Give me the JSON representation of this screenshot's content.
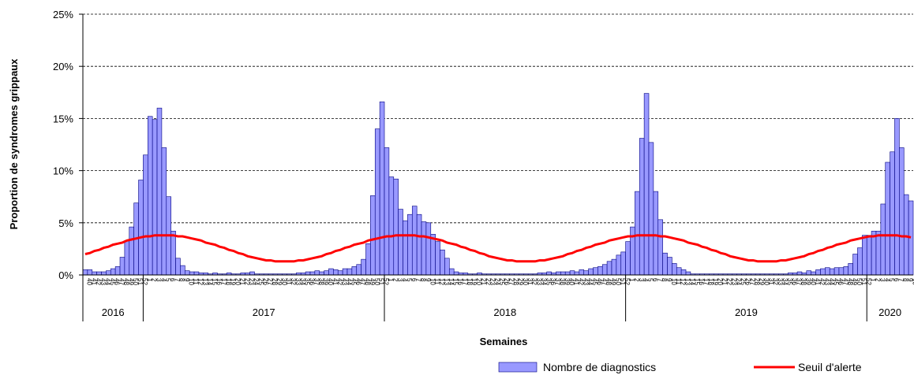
{
  "chart_data": {
    "type": "bar",
    "x_label": "Semaines",
    "y_label": "Proportion de syndromes grippaux",
    "ylim": [
      0,
      25
    ],
    "yticks": [
      {
        "value": 0,
        "label": "0%"
      },
      {
        "value": 5,
        "label": "5%"
      },
      {
        "value": 10,
        "label": "10%"
      },
      {
        "value": 15,
        "label": "15%"
      },
      {
        "value": 20,
        "label": "20%"
      },
      {
        "value": 25,
        "label": "25%"
      }
    ],
    "grid": true,
    "legend": "bottom-right",
    "categories": [
      "40",
      "41",
      "42",
      "43",
      "44",
      "45",
      "46",
      "47",
      "48",
      "49",
      "50",
      "51",
      "52",
      "1",
      "2",
      "3",
      "4",
      "5",
      "6",
      "7",
      "8",
      "9",
      "10",
      "11",
      "12",
      "13",
      "14",
      "15",
      "16",
      "17",
      "18",
      "19",
      "20",
      "21",
      "22",
      "23",
      "24",
      "25",
      "26",
      "27",
      "28",
      "29",
      "30",
      "31",
      "32",
      "33",
      "34",
      "35",
      "36",
      "37",
      "38",
      "39",
      "40",
      "41",
      "42",
      "43",
      "44",
      "45",
      "46",
      "47",
      "48",
      "49",
      "50",
      "51",
      "52",
      "1",
      "2",
      "3",
      "4",
      "5",
      "6",
      "7",
      "8",
      "9",
      "10",
      "11",
      "12",
      "13",
      "14",
      "15",
      "16",
      "17",
      "18",
      "19",
      "20",
      "21",
      "22",
      "23",
      "24",
      "25",
      "26",
      "27",
      "28",
      "29",
      "30",
      "31",
      "32",
      "33",
      "34",
      "35",
      "36",
      "37",
      "38",
      "39",
      "40",
      "41",
      "42",
      "43",
      "44",
      "45",
      "46",
      "47",
      "48",
      "49",
      "50",
      "51",
      "52",
      "1",
      "2",
      "3",
      "4",
      "5",
      "6",
      "7",
      "8",
      "9",
      "10",
      "11",
      "12",
      "13",
      "14",
      "15",
      "16",
      "17",
      "18",
      "19",
      "20",
      "21",
      "22",
      "23",
      "24",
      "25",
      "26",
      "27",
      "28",
      "29",
      "30",
      "31",
      "32",
      "33",
      "34",
      "35",
      "36",
      "37",
      "38",
      "39",
      "40",
      "41",
      "42",
      "43",
      "44",
      "45",
      "46",
      "47",
      "48",
      "49",
      "50",
      "51",
      "52",
      "1",
      "2",
      "3",
      "4",
      "5",
      "6",
      "7",
      "8",
      "9",
      "10"
    ],
    "year_groups": [
      {
        "label": "2016",
        "count": 13
      },
      {
        "label": "2017",
        "count": 52
      },
      {
        "label": "2018",
        "count": 52
      },
      {
        "label": "2019",
        "count": 52
      },
      {
        "label": "2020",
        "count": 10
      }
    ],
    "series": [
      {
        "name": "Nombre de diagnostics",
        "type": "bar",
        "color": "#9999ff",
        "values": [
          0.5,
          0.5,
          0.3,
          0.3,
          0.3,
          0.4,
          0.6,
          0.8,
          1.7,
          3.3,
          4.6,
          6.9,
          9.1,
          11.5,
          15.2,
          14.9,
          16.0,
          12.2,
          7.5,
          4.2,
          1.6,
          0.9,
          0.4,
          0.3,
          0.3,
          0.2,
          0.2,
          0.1,
          0.2,
          0.1,
          0.1,
          0.2,
          0.1,
          0.1,
          0.2,
          0.2,
          0.3,
          0.1,
          0.1,
          0.1,
          0.1,
          0.1,
          0.1,
          0.1,
          0.1,
          0.1,
          0.2,
          0.2,
          0.3,
          0.3,
          0.4,
          0.3,
          0.4,
          0.6,
          0.5,
          0.4,
          0.6,
          0.6,
          0.8,
          1.0,
          1.5,
          3.0,
          7.6,
          14.0,
          16.6,
          12.2,
          9.4,
          9.2,
          6.3,
          5.2,
          5.8,
          6.6,
          5.8,
          5.1,
          5.0,
          3.9,
          3.2,
          2.4,
          1.6,
          0.6,
          0.3,
          0.2,
          0.2,
          0.1,
          0.1,
          0.2,
          0.1,
          0.1,
          0.1,
          0.1,
          0.1,
          0.1,
          0.1,
          0.1,
          0.1,
          0.1,
          0.1,
          0.1,
          0.2,
          0.2,
          0.3,
          0.2,
          0.3,
          0.3,
          0.3,
          0.4,
          0.3,
          0.5,
          0.4,
          0.6,
          0.7,
          0.8,
          1.0,
          1.3,
          1.5,
          1.9,
          2.2,
          3.2,
          4.6,
          8.0,
          13.1,
          17.4,
          12.7,
          8.0,
          5.3,
          2.1,
          1.7,
          1.1,
          0.7,
          0.5,
          0.3,
          0.1,
          0.1,
          0.1,
          0.1,
          0.1,
          0.1,
          0.1,
          0.1,
          0.1,
          0.1,
          0.1,
          0.1,
          0.1,
          0.1,
          0.1,
          0.1,
          0.1,
          0.1,
          0.1,
          0.1,
          0.1,
          0.2,
          0.2,
          0.3,
          0.2,
          0.4,
          0.3,
          0.5,
          0.6,
          0.7,
          0.6,
          0.7,
          0.7,
          0.8,
          1.1,
          2.0,
          2.6,
          3.8,
          3.8,
          4.2,
          4.2,
          6.8,
          10.8,
          11.8,
          15.0,
          12.2,
          7.7,
          7.1
        ]
      },
      {
        "name": "Seuil d'alerte",
        "type": "line",
        "color": "#ff0000",
        "values": [
          2.0,
          2.1,
          2.3,
          2.4,
          2.6,
          2.7,
          2.9,
          3.0,
          3.1,
          3.3,
          3.4,
          3.5,
          3.6,
          3.7,
          3.7,
          3.8,
          3.8,
          3.8,
          3.8,
          3.8,
          3.7,
          3.7,
          3.6,
          3.5,
          3.4,
          3.3,
          3.1,
          3.0,
          2.9,
          2.7,
          2.6,
          2.4,
          2.3,
          2.1,
          2.0,
          1.8,
          1.7,
          1.6,
          1.5,
          1.4,
          1.4,
          1.3,
          1.3,
          1.3,
          1.3,
          1.3,
          1.4,
          1.4,
          1.5,
          1.6,
          1.7,
          1.8,
          2.0,
          2.1,
          2.3,
          2.4,
          2.6,
          2.7,
          2.9,
          3.0,
          3.1,
          3.3,
          3.4,
          3.5,
          3.6,
          3.7,
          3.7,
          3.8,
          3.8,
          3.8,
          3.8,
          3.8,
          3.7,
          3.7,
          3.6,
          3.5,
          3.4,
          3.3,
          3.1,
          3.0,
          2.9,
          2.7,
          2.6,
          2.4,
          2.3,
          2.1,
          2.0,
          1.8,
          1.7,
          1.6,
          1.5,
          1.4,
          1.4,
          1.3,
          1.3,
          1.3,
          1.3,
          1.3,
          1.4,
          1.4,
          1.5,
          1.6,
          1.7,
          1.8,
          2.0,
          2.1,
          2.3,
          2.4,
          2.6,
          2.7,
          2.9,
          3.0,
          3.1,
          3.3,
          3.4,
          3.5,
          3.6,
          3.7,
          3.7,
          3.8,
          3.8,
          3.8,
          3.8,
          3.8,
          3.7,
          3.7,
          3.6,
          3.5,
          3.4,
          3.3,
          3.1,
          3.0,
          2.9,
          2.7,
          2.6,
          2.4,
          2.3,
          2.1,
          2.0,
          1.8,
          1.7,
          1.6,
          1.5,
          1.4,
          1.4,
          1.3,
          1.3,
          1.3,
          1.3,
          1.3,
          1.4,
          1.4,
          1.5,
          1.6,
          1.7,
          1.8,
          2.0,
          2.1,
          2.3,
          2.4,
          2.6,
          2.7,
          2.9,
          3.0,
          3.1,
          3.3,
          3.4,
          3.5,
          3.6,
          3.7,
          3.7,
          3.8,
          3.8,
          3.8,
          3.8,
          3.8,
          3.7,
          3.7,
          3.6
        ]
      }
    ]
  }
}
